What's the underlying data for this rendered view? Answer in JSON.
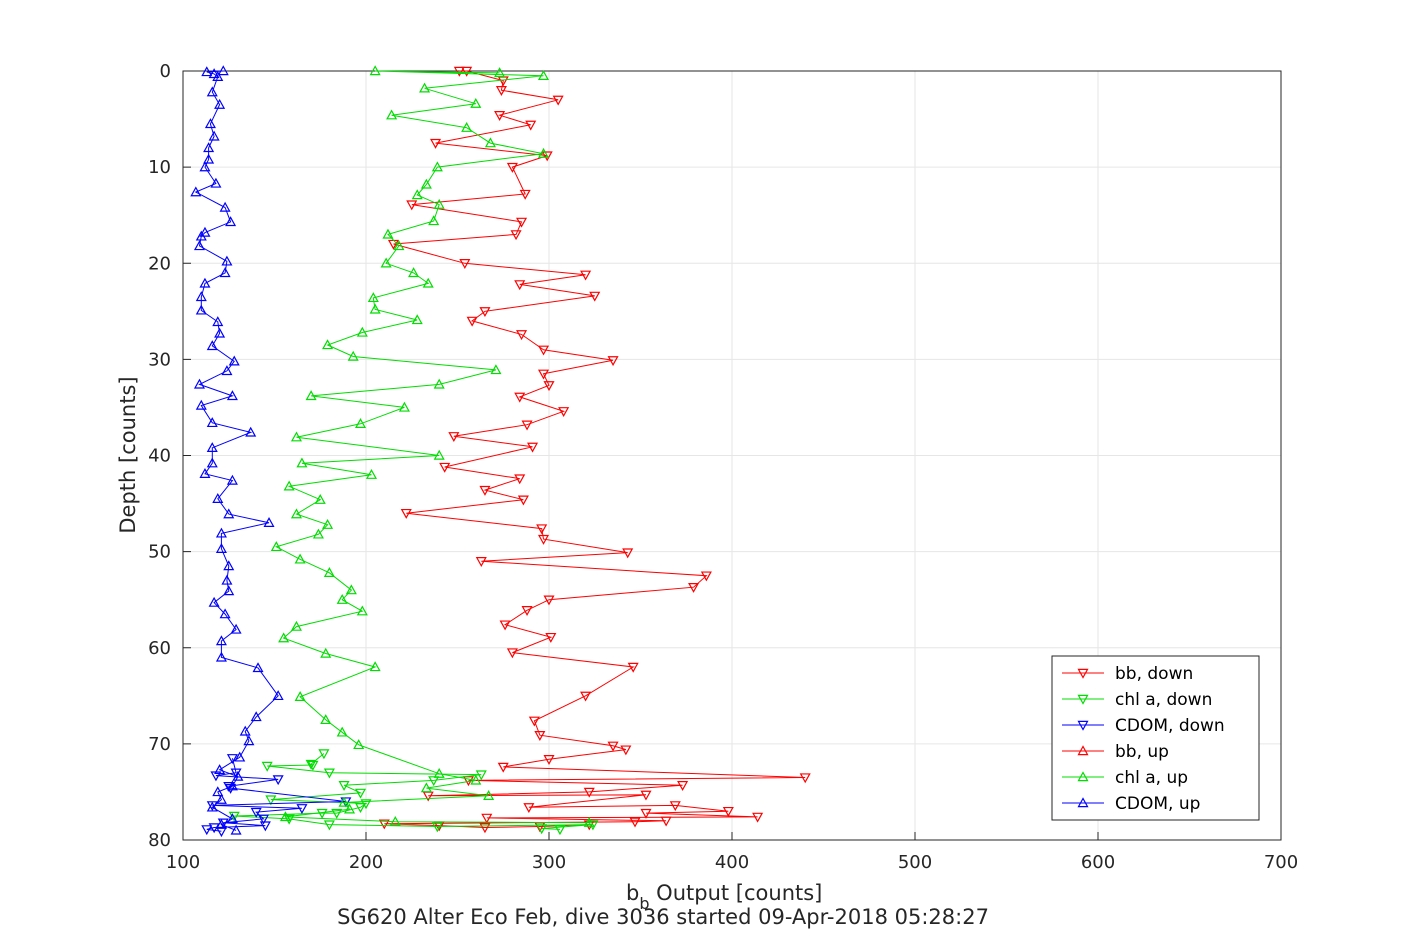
{
  "chart_data": {
    "type": "line",
    "xlabel_main": "b",
    "xlabel_sub": "b",
    "xlabel_rest": " Output [counts]",
    "ylabel": "Depth [counts]",
    "caption": "SG620 Alter Eco Feb, dive 3036 started 09-Apr-2018 05:28:27",
    "xlim": [
      100,
      700
    ],
    "ylim": [
      0,
      80
    ],
    "y_reversed": true,
    "grid": true,
    "legend_placement": "bottom-right",
    "xticks": [
      "100",
      "200",
      "300",
      "400",
      "500",
      "600",
      "700"
    ],
    "yticks": [
      "0",
      "10",
      "20",
      "30",
      "40",
      "50",
      "60",
      "70",
      "80"
    ],
    "series": [
      {
        "name": "bb, down",
        "color": "#ff0000",
        "marker": "triangle-down",
        "points": [
          [
            251,
            0
          ],
          [
            255,
            0
          ],
          [
            275,
            1
          ],
          [
            274,
            2
          ],
          [
            305,
            3
          ],
          [
            273,
            4.6
          ],
          [
            290,
            5.6
          ],
          [
            238,
            7.5
          ],
          [
            299,
            8.8
          ],
          [
            280,
            10
          ],
          [
            287,
            12.8
          ],
          [
            225,
            13.9
          ],
          [
            285,
            15.7
          ],
          [
            282,
            17
          ],
          [
            215,
            18
          ],
          [
            254,
            20
          ],
          [
            320,
            21.2
          ],
          [
            284,
            22.2
          ],
          [
            325,
            23.4
          ],
          [
            265,
            25
          ],
          [
            258,
            26
          ],
          [
            285,
            27.4
          ],
          [
            297,
            29
          ],
          [
            335,
            30.1
          ],
          [
            297,
            31.5
          ],
          [
            300,
            32.7
          ],
          [
            284,
            33.9
          ],
          [
            308,
            35.4
          ],
          [
            288,
            36.8
          ],
          [
            248,
            38
          ],
          [
            291,
            39.1
          ],
          [
            243,
            41.2
          ],
          [
            284,
            42.4
          ],
          [
            265,
            43.6
          ],
          [
            286,
            44.6
          ],
          [
            222,
            46
          ],
          [
            296,
            47.6
          ],
          [
            297,
            48.7
          ],
          [
            343,
            50.1
          ],
          [
            263,
            51
          ],
          [
            386,
            52.5
          ],
          [
            379,
            53.7
          ],
          [
            300,
            55
          ],
          [
            288,
            56.1
          ],
          [
            276,
            57.6
          ],
          [
            301,
            58.9
          ],
          [
            280,
            60.5
          ],
          [
            346,
            62
          ],
          [
            320,
            65
          ],
          [
            292,
            67.6
          ],
          [
            295,
            69.1
          ],
          [
            335,
            70.2
          ],
          [
            342,
            70.6
          ],
          [
            300,
            71.6
          ],
          [
            275,
            72.4
          ],
          [
            440,
            73.5
          ],
          [
            256,
            73.8
          ],
          [
            373,
            74.3
          ],
          [
            322,
            75
          ],
          [
            234,
            75.4
          ],
          [
            353,
            75.3
          ],
          [
            289,
            76.6
          ],
          [
            369,
            76.4
          ],
          [
            398,
            77
          ],
          [
            353,
            77.2
          ],
          [
            414,
            77.6
          ],
          [
            266,
            77.7
          ],
          [
            364,
            78
          ],
          [
            347,
            78.1
          ],
          [
            210,
            78.3
          ],
          [
            240,
            78.5
          ],
          [
            265,
            78.7
          ],
          [
            295,
            78.6
          ],
          [
            322,
            78.4
          ]
        ]
      },
      {
        "name": "chl a, down",
        "color": "#00dd00",
        "marker": "triangle-down",
        "points": [
          [
            177,
            71
          ],
          [
            170,
            72.1
          ],
          [
            171,
            72.2
          ],
          [
            146,
            72.3
          ],
          [
            180,
            73
          ],
          [
            263,
            73.2
          ],
          [
            237,
            73.8
          ],
          [
            188,
            74.3
          ],
          [
            197,
            75.1
          ],
          [
            148,
            75.8
          ],
          [
            200,
            76.2
          ],
          [
            197,
            76.6
          ],
          [
            184,
            77.2
          ],
          [
            176,
            77.2
          ],
          [
            128,
            77.5
          ],
          [
            158,
            77.8
          ],
          [
            180,
            78.4
          ],
          [
            239,
            78.6
          ],
          [
            324,
            78.4
          ],
          [
            296,
            78.8
          ],
          [
            306,
            78.9
          ]
        ]
      },
      {
        "name": "CDOM, down",
        "color": "#0000ff",
        "marker": "triangle-down",
        "points": [
          [
            127,
            71.5
          ],
          [
            129,
            73
          ],
          [
            118,
            73.3
          ],
          [
            152,
            73.7
          ],
          [
            125,
            74.4
          ],
          [
            126,
            74.6
          ],
          [
            189,
            76
          ],
          [
            116,
            76.4
          ],
          [
            165,
            76.7
          ],
          [
            140,
            77.1
          ],
          [
            144,
            77.8
          ],
          [
            122,
            78.2
          ],
          [
            145,
            78.5
          ],
          [
            117,
            78.7
          ],
          [
            113,
            78.9
          ],
          [
            121,
            79.1
          ]
        ]
      },
      {
        "name": "bb, up",
        "color": "#ff0000",
        "marker": "triangle-up",
        "points": []
      },
      {
        "name": "chl a, up",
        "color": "#00dd00",
        "marker": "triangle-up",
        "points": [
          [
            322,
            78.2
          ],
          [
            216,
            78.1
          ],
          [
            156,
            77.6
          ],
          [
            191,
            76.8
          ],
          [
            188,
            76.1
          ],
          [
            267,
            75.4
          ],
          [
            233,
            74.6
          ],
          [
            260,
            73.8
          ],
          [
            240,
            73.1
          ],
          [
            196,
            70.1
          ],
          [
            187,
            68.8
          ],
          [
            178,
            67.5
          ],
          [
            164,
            65.1
          ],
          [
            205,
            62
          ],
          [
            178,
            60.6
          ],
          [
            155,
            59
          ],
          [
            162,
            57.8
          ],
          [
            198,
            56.2
          ],
          [
            187,
            55
          ],
          [
            192,
            54
          ],
          [
            180,
            52.2
          ],
          [
            164,
            50.8
          ],
          [
            151,
            49.5
          ],
          [
            174,
            48.2
          ],
          [
            179,
            47.2
          ],
          [
            162,
            46.1
          ],
          [
            175,
            44.6
          ],
          [
            158,
            43.2
          ],
          [
            203,
            42
          ],
          [
            165,
            40.8
          ],
          [
            240,
            40
          ],
          [
            162,
            38.1
          ],
          [
            197,
            36.7
          ],
          [
            221,
            35
          ],
          [
            170,
            33.8
          ],
          [
            240,
            32.6
          ],
          [
            271,
            31.1
          ],
          [
            193,
            29.7
          ],
          [
            179,
            28.5
          ],
          [
            198,
            27.2
          ],
          [
            228,
            25.9
          ],
          [
            205,
            24.8
          ],
          [
            204,
            23.6
          ],
          [
            234,
            22.1
          ],
          [
            226,
            21
          ],
          [
            211,
            20
          ],
          [
            218,
            18.2
          ],
          [
            212,
            17
          ],
          [
            237,
            15.6
          ],
          [
            240,
            13.9
          ],
          [
            228,
            12.9
          ],
          [
            233,
            11.8
          ],
          [
            239,
            10
          ],
          [
            297,
            8.6
          ],
          [
            268,
            7.5
          ],
          [
            255,
            5.9
          ],
          [
            214,
            4.6
          ],
          [
            260,
            3.4
          ],
          [
            232,
            1.8
          ],
          [
            297,
            0.5
          ],
          [
            205,
            0
          ],
          [
            273,
            0.2
          ]
        ]
      },
      {
        "name": "CDOM, up",
        "color": "#0000ff",
        "marker": "triangle-up",
        "points": [
          [
            129,
            79
          ],
          [
            121,
            78.4
          ],
          [
            127,
            77.8
          ],
          [
            116,
            76.6
          ],
          [
            121,
            75.8
          ],
          [
            119,
            75
          ],
          [
            127,
            74.4
          ],
          [
            130,
            73.4
          ],
          [
            120,
            72.7
          ],
          [
            131,
            71.4
          ],
          [
            136,
            69.7
          ],
          [
            134,
            68.7
          ],
          [
            140,
            67.2
          ],
          [
            152,
            65
          ],
          [
            141,
            62.1
          ],
          [
            121,
            61
          ],
          [
            121,
            59.3
          ],
          [
            129,
            58.1
          ],
          [
            123,
            56.5
          ],
          [
            117,
            55.3
          ],
          [
            125,
            54.1
          ],
          [
            124,
            53
          ],
          [
            125,
            51.5
          ],
          [
            121,
            49.7
          ],
          [
            121,
            48.1
          ],
          [
            147,
            47
          ],
          [
            125,
            46.1
          ],
          [
            119,
            44.5
          ],
          [
            127,
            42.6
          ],
          [
            112,
            41.9
          ],
          [
            116,
            40.8
          ],
          [
            116,
            39.2
          ],
          [
            137,
            37.6
          ],
          [
            116,
            36.6
          ],
          [
            110,
            34.8
          ],
          [
            127,
            33.8
          ],
          [
            109,
            32.6
          ],
          [
            124,
            31.2
          ],
          [
            128,
            30.2
          ],
          [
            116,
            28.6
          ],
          [
            120,
            27.3
          ],
          [
            119,
            26.1
          ],
          [
            110,
            24.9
          ],
          [
            110,
            23.5
          ],
          [
            112,
            22.1
          ],
          [
            123,
            21
          ],
          [
            124,
            19.8
          ],
          [
            109,
            18.2
          ],
          [
            110,
            17.2
          ],
          [
            112,
            16.8
          ],
          [
            126,
            15.7
          ],
          [
            123,
            14.2
          ],
          [
            107,
            12.6
          ],
          [
            118,
            11.7
          ],
          [
            112,
            10
          ],
          [
            114,
            9.2
          ],
          [
            114,
            8
          ],
          [
            117,
            6.8
          ],
          [
            115,
            5.5
          ],
          [
            120,
            3.5
          ],
          [
            116,
            2.2
          ],
          [
            119,
            0.6
          ],
          [
            117,
            0.3
          ],
          [
            113,
            0.1
          ],
          [
            122,
            0
          ]
        ]
      }
    ]
  }
}
